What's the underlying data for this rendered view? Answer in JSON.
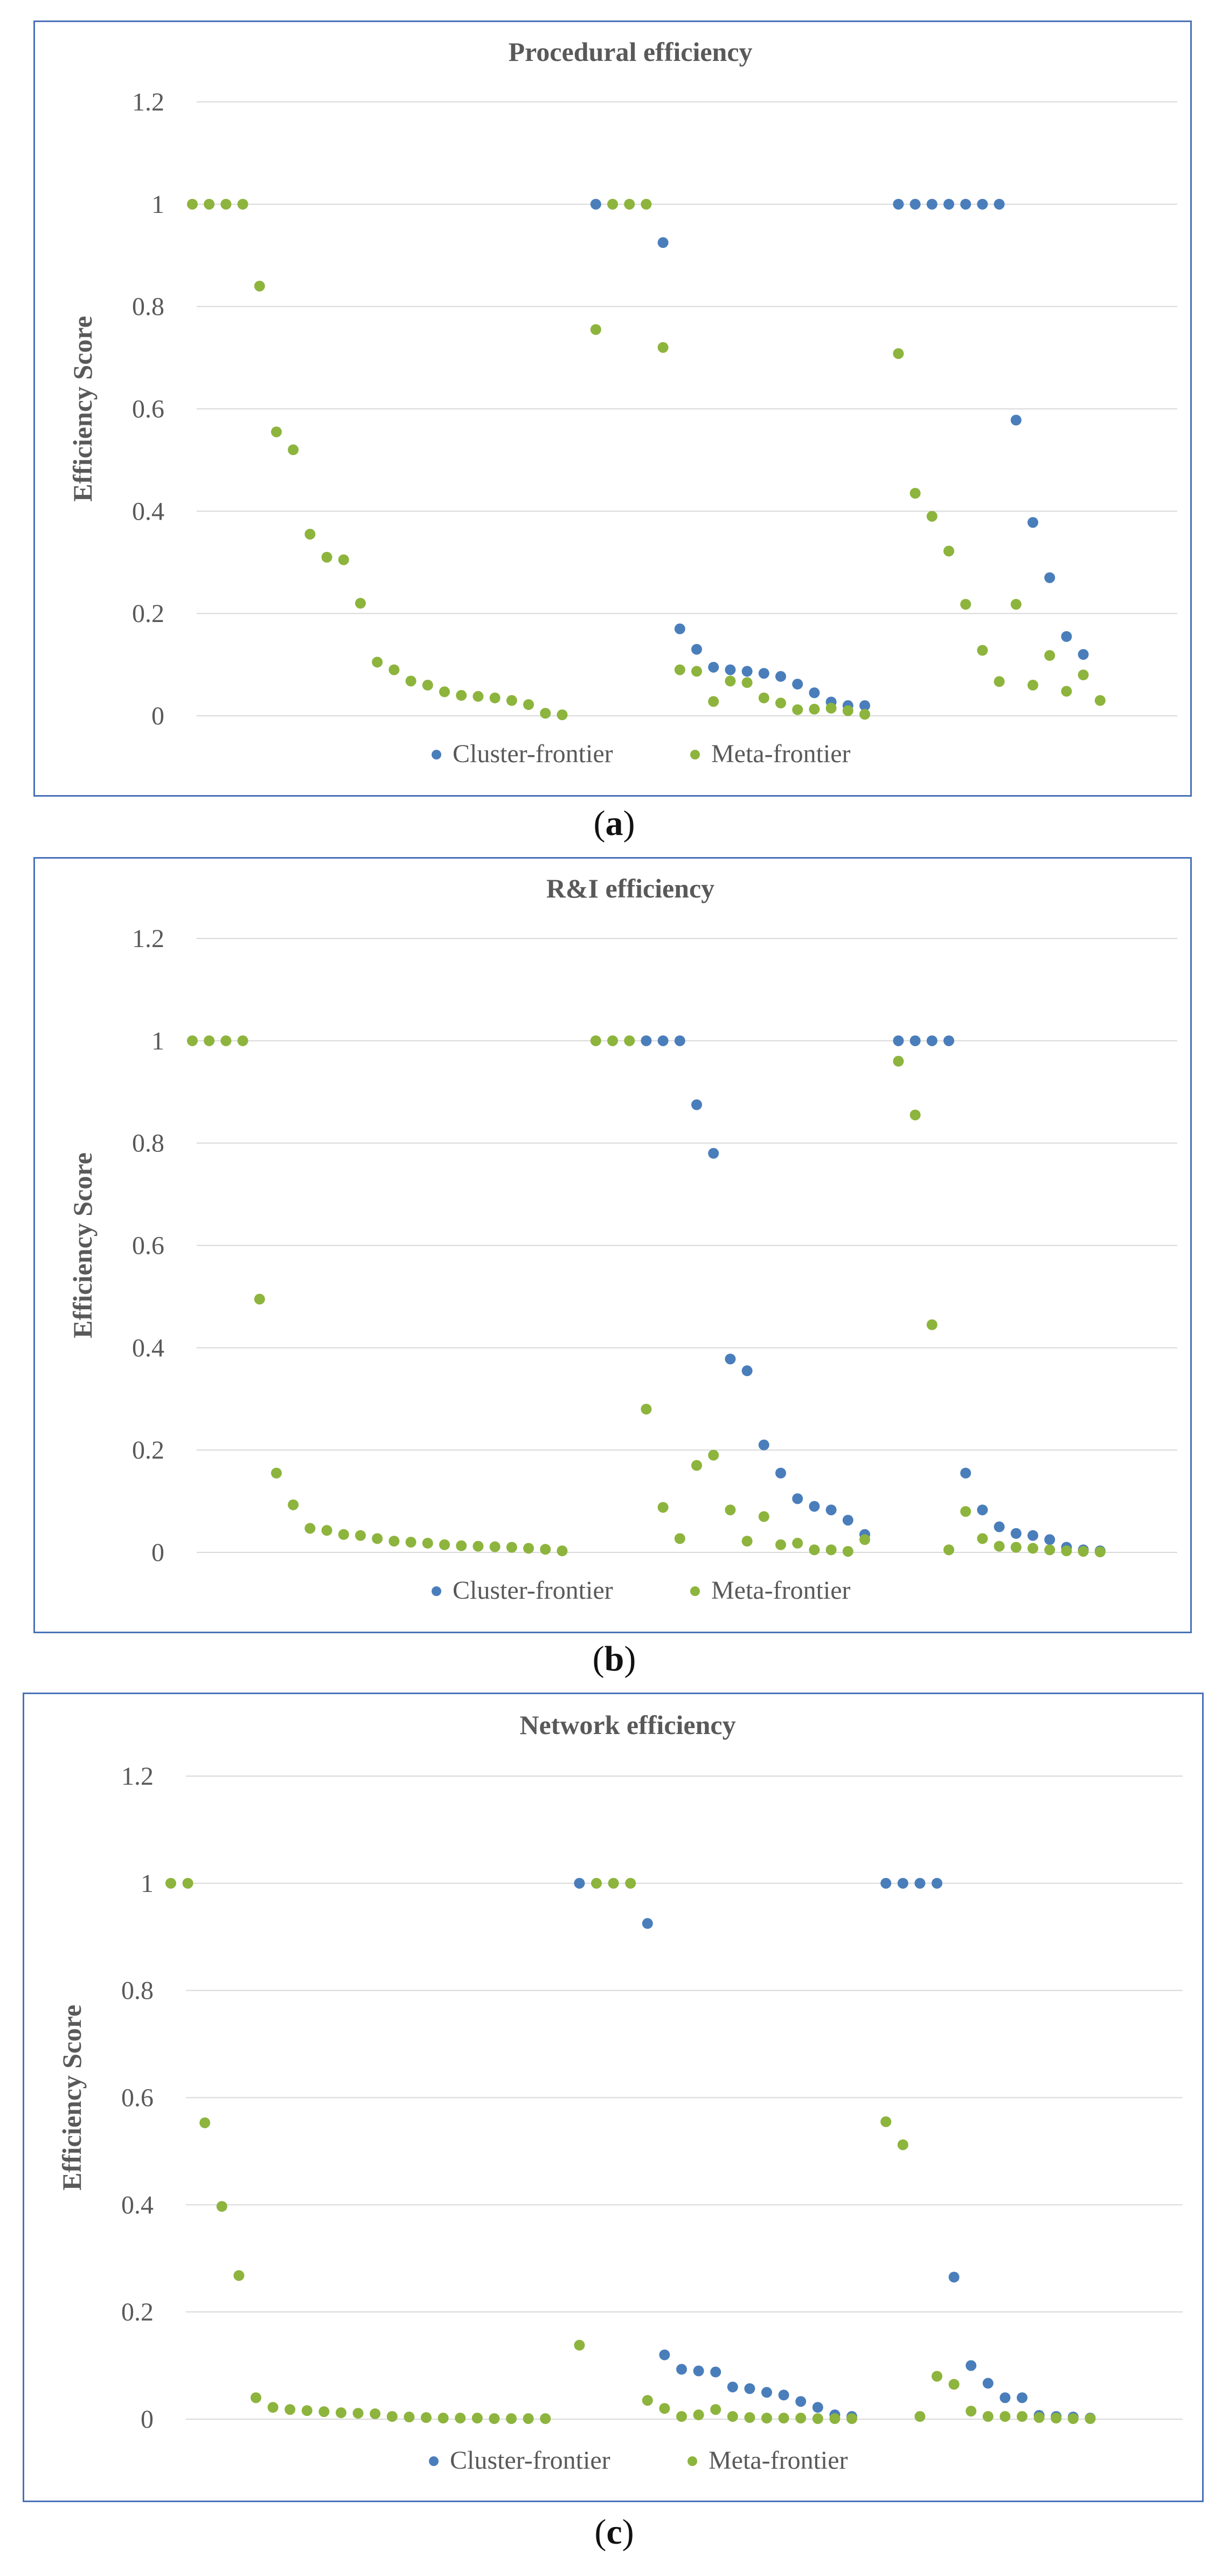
{
  "colors": {
    "cluster": "#4a7ebb",
    "meta": "#8db43d",
    "grid": "#d9d9d9",
    "border": "#4a72b8",
    "text": "#404040"
  },
  "chart_data": [
    {
      "type": "scatter",
      "panel": "a",
      "caption_letter": "a",
      "title": "Procedural efficiency",
      "ylabel": "Efficiency Score",
      "yticks": [
        "0",
        "0.2",
        "0.4",
        "0.6",
        "0.8",
        "1",
        "1.2"
      ],
      "ylim": [
        0,
        1.2
      ],
      "xlim": [
        0,
        60
      ],
      "legend": [
        "Cluster-frontier",
        "Meta-frontier"
      ],
      "series": [
        {
          "name": "Cluster-frontier",
          "points": [
            [
              25,
              1
            ],
            [
              29,
              0.925
            ],
            [
              30,
              0.17
            ],
            [
              31,
              0.13
            ],
            [
              32,
              0.095
            ],
            [
              33,
              0.09
            ],
            [
              34,
              0.087
            ],
            [
              35,
              0.083
            ],
            [
              36,
              0.077
            ],
            [
              37,
              0.062
            ],
            [
              38,
              0.045
            ],
            [
              39,
              0.027
            ],
            [
              40,
              0.02
            ],
            [
              41,
              0.02
            ],
            [
              43,
              1
            ],
            [
              44,
              1
            ],
            [
              45,
              1
            ],
            [
              46,
              1
            ],
            [
              47,
              1
            ],
            [
              48,
              1
            ],
            [
              49,
              1
            ],
            [
              50,
              0.578
            ],
            [
              51,
              0.378
            ],
            [
              52,
              0.27
            ],
            [
              53,
              0.155
            ],
            [
              54,
              0.12
            ]
          ]
        },
        {
          "name": "Meta-frontier",
          "points": [
            [
              1,
              1
            ],
            [
              2,
              1
            ],
            [
              3,
              1
            ],
            [
              4,
              1
            ],
            [
              5,
              0.84
            ],
            [
              6,
              0.555
            ],
            [
              7,
              0.52
            ],
            [
              8,
              0.355
            ],
            [
              9,
              0.31
            ],
            [
              10,
              0.305
            ],
            [
              11,
              0.22
            ],
            [
              12,
              0.105
            ],
            [
              13,
              0.09
            ],
            [
              14,
              0.068
            ],
            [
              15,
              0.06
            ],
            [
              16,
              0.047
            ],
            [
              17,
              0.04
            ],
            [
              18,
              0.038
            ],
            [
              19,
              0.035
            ],
            [
              20,
              0.03
            ],
            [
              21,
              0.022
            ],
            [
              22,
              0.005
            ],
            [
              23,
              0.002
            ],
            [
              25,
              0.755
            ],
            [
              26,
              1
            ],
            [
              27,
              1
            ],
            [
              28,
              1
            ],
            [
              29,
              0.72
            ],
            [
              30,
              0.09
            ],
            [
              31,
              0.087
            ],
            [
              32,
              0.028
            ],
            [
              33,
              0.068
            ],
            [
              34,
              0.065
            ],
            [
              35,
              0.035
            ],
            [
              36,
              0.025
            ],
            [
              37,
              0.012
            ],
            [
              38,
              0.013
            ],
            [
              39,
              0.015
            ],
            [
              40,
              0.01
            ],
            [
              41,
              0.003
            ],
            [
              43,
              0.708
            ],
            [
              44,
              0.435
            ],
            [
              45,
              0.39
            ],
            [
              46,
              0.322
            ],
            [
              47,
              0.218
            ],
            [
              48,
              0.128
            ],
            [
              49,
              0.067
            ],
            [
              50,
              0.218
            ],
            [
              51,
              0.06
            ],
            [
              52,
              0.118
            ],
            [
              53,
              0.048
            ],
            [
              54,
              0.08
            ],
            [
              55,
              0.03
            ]
          ]
        }
      ]
    },
    {
      "type": "scatter",
      "panel": "b",
      "caption_letter": "b",
      "title": "R&I efficiency",
      "ylabel": "Efficiency Score",
      "yticks": [
        "0",
        "0.2",
        "0.4",
        "0.6",
        "0.8",
        "1",
        "1.2"
      ],
      "ylim": [
        0,
        1.2
      ],
      "xlim": [
        0,
        60
      ],
      "legend": [
        "Cluster-frontier",
        "Meta-frontier"
      ],
      "series": [
        {
          "name": "Cluster-frontier",
          "points": [
            [
              28,
              1
            ],
            [
              29,
              1
            ],
            [
              30,
              1
            ],
            [
              31,
              0.875
            ],
            [
              32,
              0.78
            ],
            [
              33,
              0.378
            ],
            [
              34,
              0.355
            ],
            [
              35,
              0.21
            ],
            [
              36,
              0.155
            ],
            [
              37,
              0.105
            ],
            [
              38,
              0.09
            ],
            [
              39,
              0.083
            ],
            [
              40,
              0.063
            ],
            [
              41,
              0.035
            ],
            [
              43,
              1
            ],
            [
              44,
              1
            ],
            [
              45,
              1
            ],
            [
              46,
              1
            ],
            [
              47,
              0.155
            ],
            [
              48,
              0.083
            ],
            [
              49,
              0.05
            ],
            [
              50,
              0.037
            ],
            [
              51,
              0.033
            ],
            [
              52,
              0.025
            ],
            [
              53,
              0.01
            ],
            [
              54,
              0.005
            ],
            [
              55,
              0.003
            ]
          ]
        },
        {
          "name": "Meta-frontier",
          "points": [
            [
              1,
              1
            ],
            [
              2,
              1
            ],
            [
              3,
              1
            ],
            [
              4,
              1
            ],
            [
              5,
              0.495
            ],
            [
              6,
              0.155
            ],
            [
              7,
              0.093
            ],
            [
              8,
              0.047
            ],
            [
              9,
              0.043
            ],
            [
              10,
              0.035
            ],
            [
              11,
              0.033
            ],
            [
              12,
              0.027
            ],
            [
              13,
              0.022
            ],
            [
              14,
              0.02
            ],
            [
              15,
              0.018
            ],
            [
              16,
              0.015
            ],
            [
              17,
              0.013
            ],
            [
              18,
              0.012
            ],
            [
              19,
              0.011
            ],
            [
              20,
              0.01
            ],
            [
              21,
              0.008
            ],
            [
              22,
              0.006
            ],
            [
              23,
              0.003
            ],
            [
              25,
              1
            ],
            [
              26,
              1
            ],
            [
              27,
              1
            ],
            [
              28,
              0.28
            ],
            [
              29,
              0.088
            ],
            [
              30,
              0.027
            ],
            [
              31,
              0.17
            ],
            [
              32,
              0.19
            ],
            [
              33,
              0.083
            ],
            [
              34,
              0.022
            ],
            [
              35,
              0.07
            ],
            [
              36,
              0.015
            ],
            [
              37,
              0.018
            ],
            [
              38,
              0.005
            ],
            [
              39,
              0.005
            ],
            [
              40,
              0.002
            ],
            [
              41,
              0.025
            ],
            [
              43,
              0.96
            ],
            [
              44,
              0.855
            ],
            [
              45,
              0.445
            ],
            [
              46,
              0.005
            ],
            [
              47,
              0.08
            ],
            [
              48,
              0.027
            ],
            [
              49,
              0.012
            ],
            [
              50,
              0.01
            ],
            [
              51,
              0.008
            ],
            [
              52,
              0.005
            ],
            [
              53,
              0.003
            ],
            [
              54,
              0.002
            ],
            [
              55,
              0.001
            ]
          ]
        }
      ]
    },
    {
      "type": "scatter",
      "panel": "c",
      "caption_letter": "c",
      "title": "Network efficiency",
      "ylabel": "Efficiency Score",
      "yticks": [
        "0",
        "0.2",
        "0.4",
        "0.6",
        "0.8",
        "1",
        "1.2"
      ],
      "ylim": [
        0,
        1.2
      ],
      "xlim": [
        0,
        60
      ],
      "legend": [
        "Cluster-frontier",
        "Meta-frontier"
      ],
      "series": [
        {
          "name": "Cluster-frontier",
          "points": [
            [
              25,
              1
            ],
            [
              29,
              0.925
            ],
            [
              30,
              0.12
            ],
            [
              31,
              0.093
            ],
            [
              32,
              0.09
            ],
            [
              33,
              0.088
            ],
            [
              34,
              0.06
            ],
            [
              35,
              0.057
            ],
            [
              36,
              0.05
            ],
            [
              37,
              0.045
            ],
            [
              38,
              0.033
            ],
            [
              39,
              0.022
            ],
            [
              40,
              0.008
            ],
            [
              41,
              0.005
            ],
            [
              43,
              1
            ],
            [
              44,
              1
            ],
            [
              45,
              1
            ],
            [
              46,
              1
            ],
            [
              47,
              0.265
            ],
            [
              48,
              0.1
            ],
            [
              49,
              0.067
            ],
            [
              50,
              0.04
            ],
            [
              51,
              0.04
            ],
            [
              52,
              0.007
            ],
            [
              53,
              0.005
            ],
            [
              54,
              0.004
            ],
            [
              55,
              0.002
            ]
          ]
        },
        {
          "name": "Meta-frontier",
          "points": [
            [
              1,
              1
            ],
            [
              2,
              1
            ],
            [
              3,
              0.553
            ],
            [
              4,
              0.397
            ],
            [
              5,
              0.268
            ],
            [
              6,
              0.04
            ],
            [
              7,
              0.022
            ],
            [
              8,
              0.018
            ],
            [
              9,
              0.016
            ],
            [
              10,
              0.014
            ],
            [
              11,
              0.012
            ],
            [
              12,
              0.011
            ],
            [
              13,
              0.01
            ],
            [
              14,
              0.005
            ],
            [
              15,
              0.004
            ],
            [
              16,
              0.003
            ],
            [
              17,
              0.002
            ],
            [
              18,
              0.002
            ],
            [
              19,
              0.002
            ],
            [
              20,
              0.001
            ],
            [
              21,
              0.001
            ],
            [
              22,
              0.001
            ],
            [
              23,
              0.001
            ],
            [
              25,
              0.138
            ],
            [
              26,
              1
            ],
            [
              27,
              1
            ],
            [
              28,
              1
            ],
            [
              29,
              0.035
            ],
            [
              30,
              0.02
            ],
            [
              31,
              0.005
            ],
            [
              32,
              0.008
            ],
            [
              33,
              0.018
            ],
            [
              34,
              0.005
            ],
            [
              35,
              0.003
            ],
            [
              36,
              0.002
            ],
            [
              37,
              0.002
            ],
            [
              38,
              0.002
            ],
            [
              39,
              0.001
            ],
            [
              40,
              0.001
            ],
            [
              41,
              0.001
            ],
            [
              43,
              0.555
            ],
            [
              44,
              0.512
            ],
            [
              45,
              0.005
            ],
            [
              46,
              0.08
            ],
            [
              47,
              0.065
            ],
            [
              48,
              0.015
            ],
            [
              49,
              0.005
            ],
            [
              50,
              0.005
            ],
            [
              51,
              0.005
            ],
            [
              52,
              0.003
            ],
            [
              53,
              0.002
            ],
            [
              54,
              0.001
            ],
            [
              55,
              0.001
            ]
          ]
        }
      ]
    }
  ]
}
